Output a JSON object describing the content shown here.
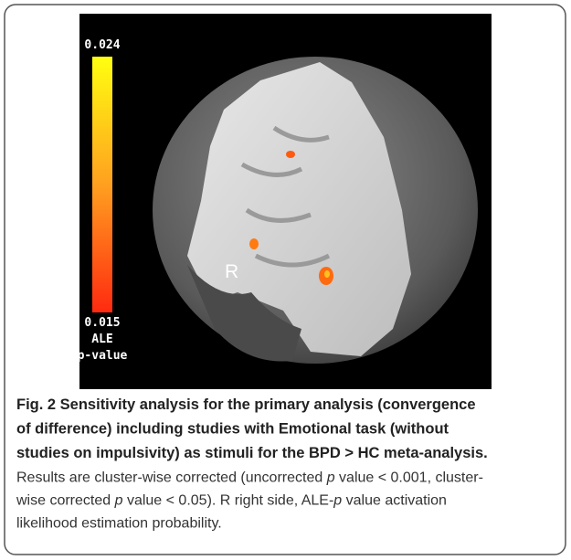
{
  "figure": {
    "colorbar": {
      "max_label": "0.024",
      "min_label": "0.015",
      "unit_lines": [
        "ALE",
        "p-value"
      ]
    },
    "side_label": "R"
  },
  "caption": {
    "title_lines": [
      "Fig. 2 Sensitivity analysis for the primary analysis (convergence",
      "of difference) including studies with Emotional task (without",
      "studies on impulsivity) as stimuli for the BPD > HC meta-analysis."
    ],
    "body_lines": [
      [
        "Results are cluster-wise corrected (uncorrected ",
        "p",
        " value < 0.001, cluster-"
      ],
      [
        "wise corrected ",
        "p",
        " value < 0.05). R right side, ALE-",
        "p",
        " value activation"
      ],
      [
        "likelihood estimation probability."
      ]
    ]
  }
}
